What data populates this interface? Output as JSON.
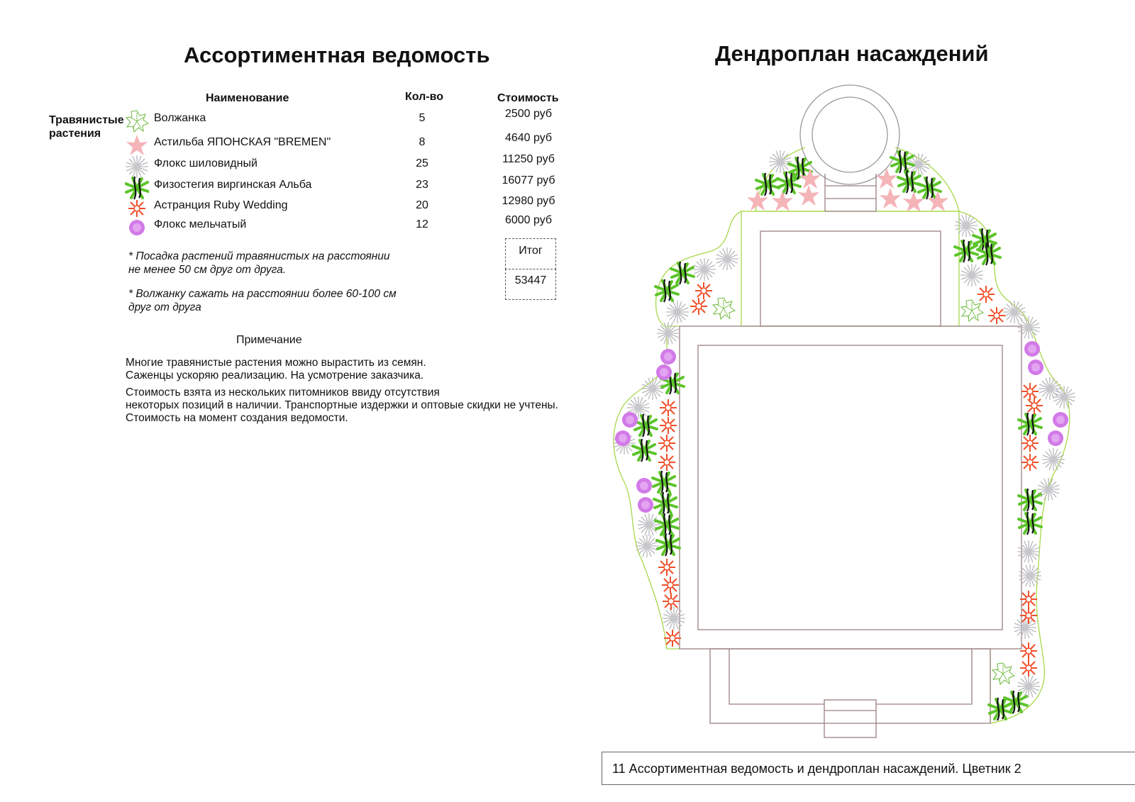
{
  "left": {
    "title": "Ассортиментная ведомость",
    "headers": {
      "name": "Наименование",
      "qty": "Кол-во",
      "cost": "Стоимость"
    },
    "category": "Травянистые растения",
    "rows": [
      {
        "icon": "volzhanka-leaf-icon",
        "name": "Волжанка",
        "qty": "5",
        "cost": "2500 руб"
      },
      {
        "icon": "astilbe-pink-icon",
        "name": "Астильба ЯПОНСКАЯ \"BREMEN\"",
        "qty": "8",
        "cost": "4640 руб"
      },
      {
        "icon": "phlox-grey-icon",
        "name": "Флокс шиловидный",
        "qty": "25",
        "cost": "11250 руб"
      },
      {
        "icon": "physostegia-green-icon",
        "name": "Физостегия виргинская Альба",
        "qty": "23",
        "cost": "16077 руб"
      },
      {
        "icon": "astrantia-red-icon",
        "name": "Астранция Ruby Wedding",
        "qty": "20",
        "cost": "12980 руб"
      },
      {
        "icon": "phlox-purple-icon",
        "name": "Флокс мельчатый",
        "qty": "12",
        "cost": "6000 руб"
      }
    ],
    "total_label": "Итог",
    "total_value": "53447",
    "note1": [
      "* Посадка растений травянистых на расстоянии",
      "не менее 50 см друг от друга."
    ],
    "note2": [
      "* Волжанку сажать на расстоянии более 60-100 см",
      "друг от друга"
    ],
    "remark_title": "Примечание",
    "remark1": [
      "Многие травянистые растения можно вырастить из семян.",
      "Саженцы ускоряю реализацию. На усмотрение заказчика."
    ],
    "remark2": [
      "Стоимость взята из нескольких питомников ввиду отсутствия",
      "некоторых позиций в наличии. Транспортные издержки и оптовые скидки не учтены.",
      "Стоимость на момент создания ведомости."
    ]
  },
  "right": {
    "title": "Дендроплан насаждений"
  },
  "footer": "11 Ассортиментная ведомость и дендроплан насаждений. Цветник 2",
  "colors": {
    "bed_outline": "#a8d84a",
    "paving": "#9c7f80",
    "astilbe": "#f4b4b8",
    "phlox_grey": "#b8b8bc",
    "physostegia": "#5cc42a",
    "astrantia": "#f0502a",
    "phlox_purple": "#d27ae8",
    "volzhanka": "#6cb83a"
  }
}
